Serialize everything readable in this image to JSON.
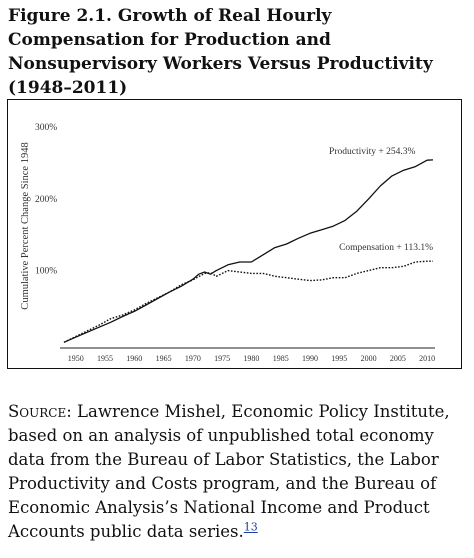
{
  "figure": {
    "title": "Figure 2.1. Growth of Real Hourly Compensation for Production and Nonsupervisory Workers Versus Productivity (1948–2011)"
  },
  "source": {
    "label": "Source:",
    "text": "Lawrence Mishel, Economic Policy Institute, based on an analysis of unpublished total economy data from the Bureau of Labor Statistics, the Labor Productivity and Costs program, and the Bureau of Economic Analysis’s National Income and Product Accounts public data series.",
    "footnote": "13"
  },
  "chart_data": {
    "type": "line",
    "title": "",
    "xlabel": "",
    "ylabel": "Cumulative Percent Change Since 1948",
    "xlim": [
      1948,
      2011
    ],
    "ylim": [
      -8,
      310
    ],
    "xticks": [
      1950,
      1955,
      1960,
      1965,
      1970,
      1975,
      1980,
      1985,
      1990,
      1995,
      2000,
      2005,
      2010
    ],
    "yticks": [
      {
        "value": 100,
        "label": "100%"
      },
      {
        "value": 200,
        "label": "200%"
      },
      {
        "value": 300,
        "label": "300%"
      }
    ],
    "grid": false,
    "series": [
      {
        "name": "Productivity",
        "annotation": "Productivity + 254.3%",
        "style": "solid",
        "x": [
          1948,
          1950,
          1952,
          1954,
          1956,
          1958,
          1960,
          1962,
          1964,
          1966,
          1968,
          1970,
          1971,
          1972,
          1973,
          1974,
          1976,
          1978,
          1980,
          1982,
          1984,
          1986,
          1988,
          1990,
          1992,
          1994,
          1996,
          1998,
          2000,
          2002,
          2004,
          2006,
          2008,
          2010,
          2011
        ],
        "y": [
          0,
          7,
          14,
          21,
          28,
          36,
          43,
          52,
          61,
          70,
          78,
          88,
          95,
          98,
          95,
          100,
          108,
          112,
          112,
          122,
          132,
          137,
          145,
          152,
          157,
          162,
          170,
          183,
          200,
          218,
          232,
          240,
          245,
          254,
          254.3
        ]
      },
      {
        "name": "Compensation",
        "annotation": "Compensation + 113.1%",
        "style": "dotted",
        "x": [
          1948,
          1950,
          1952,
          1954,
          1956,
          1958,
          1960,
          1962,
          1964,
          1966,
          1968,
          1970,
          1972,
          1973,
          1974,
          1976,
          1978,
          1980,
          1982,
          1984,
          1986,
          1988,
          1990,
          1992,
          1994,
          1996,
          1998,
          2000,
          2002,
          2004,
          2006,
          2008,
          2010,
          2011
        ],
        "y": [
          0,
          8,
          16,
          24,
          33,
          38,
          45,
          54,
          62,
          70,
          80,
          87,
          96,
          97,
          92,
          100,
          98,
          96,
          96,
          92,
          90,
          88,
          86,
          87,
          90,
          90,
          96,
          100,
          104,
          104,
          106,
          112,
          113,
          113.1
        ]
      }
    ]
  }
}
